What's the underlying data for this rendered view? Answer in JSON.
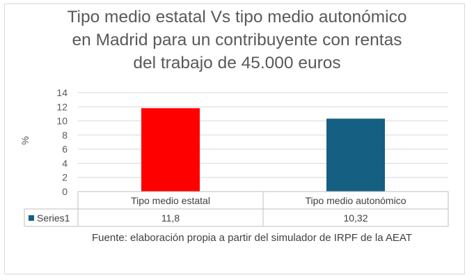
{
  "chart_data": {
    "type": "bar",
    "title": "Tipo medio estatal Vs tipo medio autonómico\nen Madrid para un contribuyente con rentas\ndel trabajo de 45.000 euros",
    "ylabel": "%",
    "xlabel": "",
    "ylim": [
      0,
      14
    ],
    "yticks": [
      0,
      2,
      4,
      6,
      8,
      10,
      12,
      14
    ],
    "categories": [
      "Tipo medio estatal",
      "Tipo medio autonómico"
    ],
    "series": [
      {
        "name": "Series1",
        "values": [
          11.8,
          10.32
        ],
        "value_labels": [
          "11,8",
          "10,32"
        ]
      }
    ],
    "bar_colors": [
      "#ff0000",
      "#156082"
    ],
    "legend_color": "#156082",
    "grid": true,
    "data_table": true
  },
  "source_note": "Fuente: elaboración propia a partir del simulador de IRPF de la AEAT"
}
